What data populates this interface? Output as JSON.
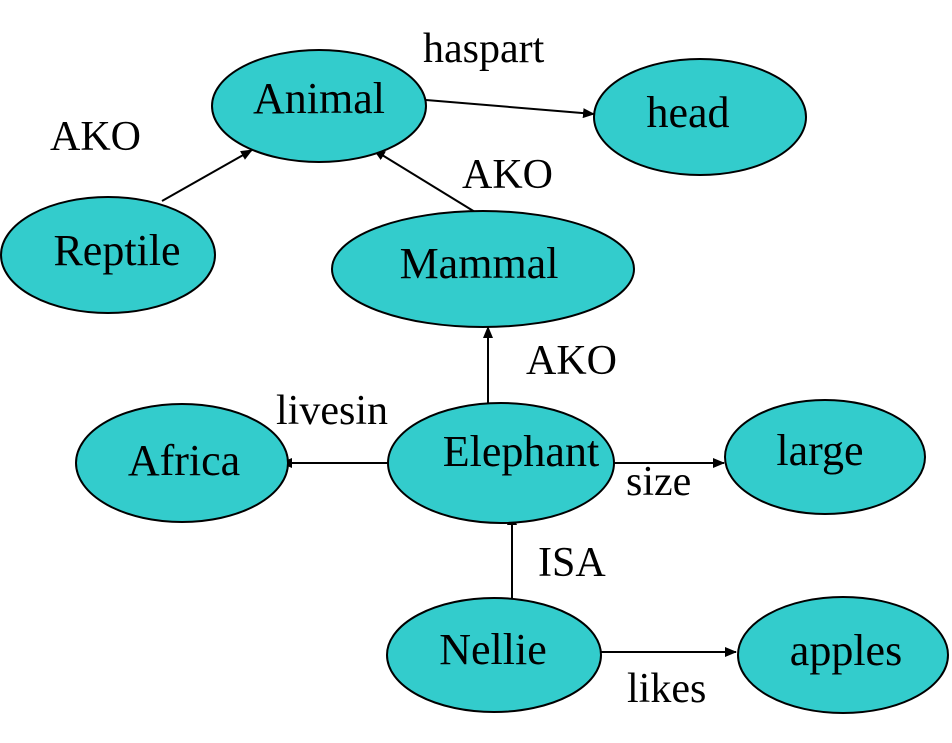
{
  "colors": {
    "node_fill": "#33CCCC",
    "stroke": "#000000",
    "background": "#FFFFFF"
  },
  "nodes": {
    "animal": "Animal",
    "head": "head",
    "reptile": "Reptile",
    "mammal": "Mammal",
    "elephant": "Elephant",
    "africa": "Africa",
    "large": "large",
    "nellie": "Nellie",
    "apples": "apples"
  },
  "edges": {
    "haspart": "haspart",
    "reptile_ako": "AKO",
    "mammal_ako": "AKO",
    "elephant_ako": "AKO",
    "livesin": "livesin",
    "size": "size",
    "isa": "ISA",
    "likes": "likes"
  }
}
